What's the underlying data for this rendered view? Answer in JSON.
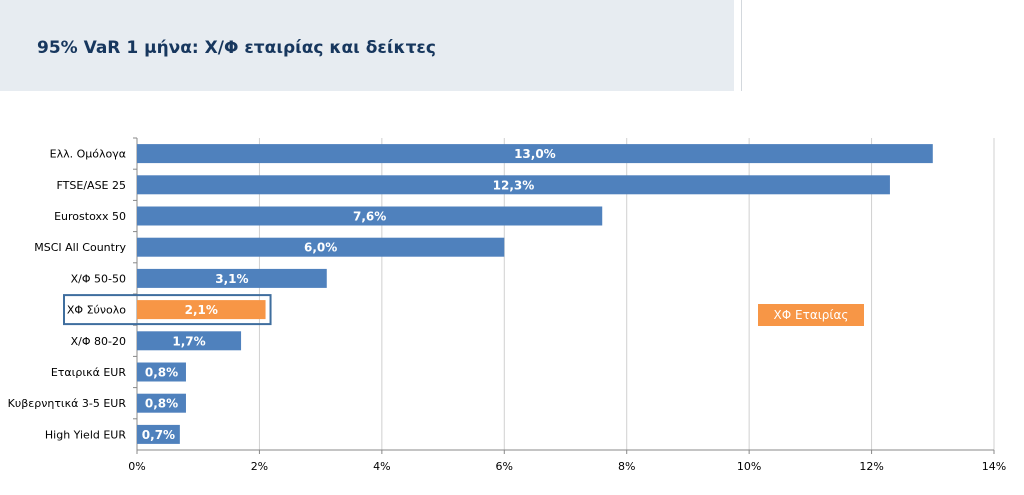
{
  "header": {
    "title": "95% VaR 1 μήνα: Χ/Φ εταιρίας και δείκτες"
  },
  "legend": {
    "label": "ΧΦ Εταιρίας"
  },
  "colors": {
    "bar_default": "#4f81bd",
    "bar_highlight": "#f79646",
    "highlight_frame": "#3f6e9e"
  },
  "chart_data": {
    "type": "bar",
    "orientation": "horizontal",
    "categories": [
      "Ελλ. Ομόλογα",
      "FTSE/ASE 25",
      "Eurostoxx 50",
      "MSCI All Country",
      "Χ/Φ 50-50",
      "ΧΦ Σύνολο",
      "Χ/Φ 80-20",
      "Εταιρικά EUR",
      "Κυβερνητικά  3-5 EUR",
      "High Yield EUR"
    ],
    "values": [
      13.0,
      12.3,
      7.6,
      6.0,
      3.1,
      2.1,
      1.7,
      0.8,
      0.8,
      0.7
    ],
    "data_labels": [
      "13,0%",
      "12,3%",
      "7,6%",
      "6,0%",
      "3,1%",
      "2,1%",
      "1,7%",
      "0,8%",
      "0,8%",
      "0,7%"
    ],
    "highlight_index": 5,
    "xlim": [
      0,
      14
    ],
    "xticks": [
      0,
      2,
      4,
      6,
      8,
      10,
      12,
      14
    ],
    "xtick_labels": [
      "0%",
      "2%",
      "4%",
      "6%",
      "8%",
      "10%",
      "12%",
      "14%"
    ],
    "grid": true,
    "legend_position": "right"
  }
}
